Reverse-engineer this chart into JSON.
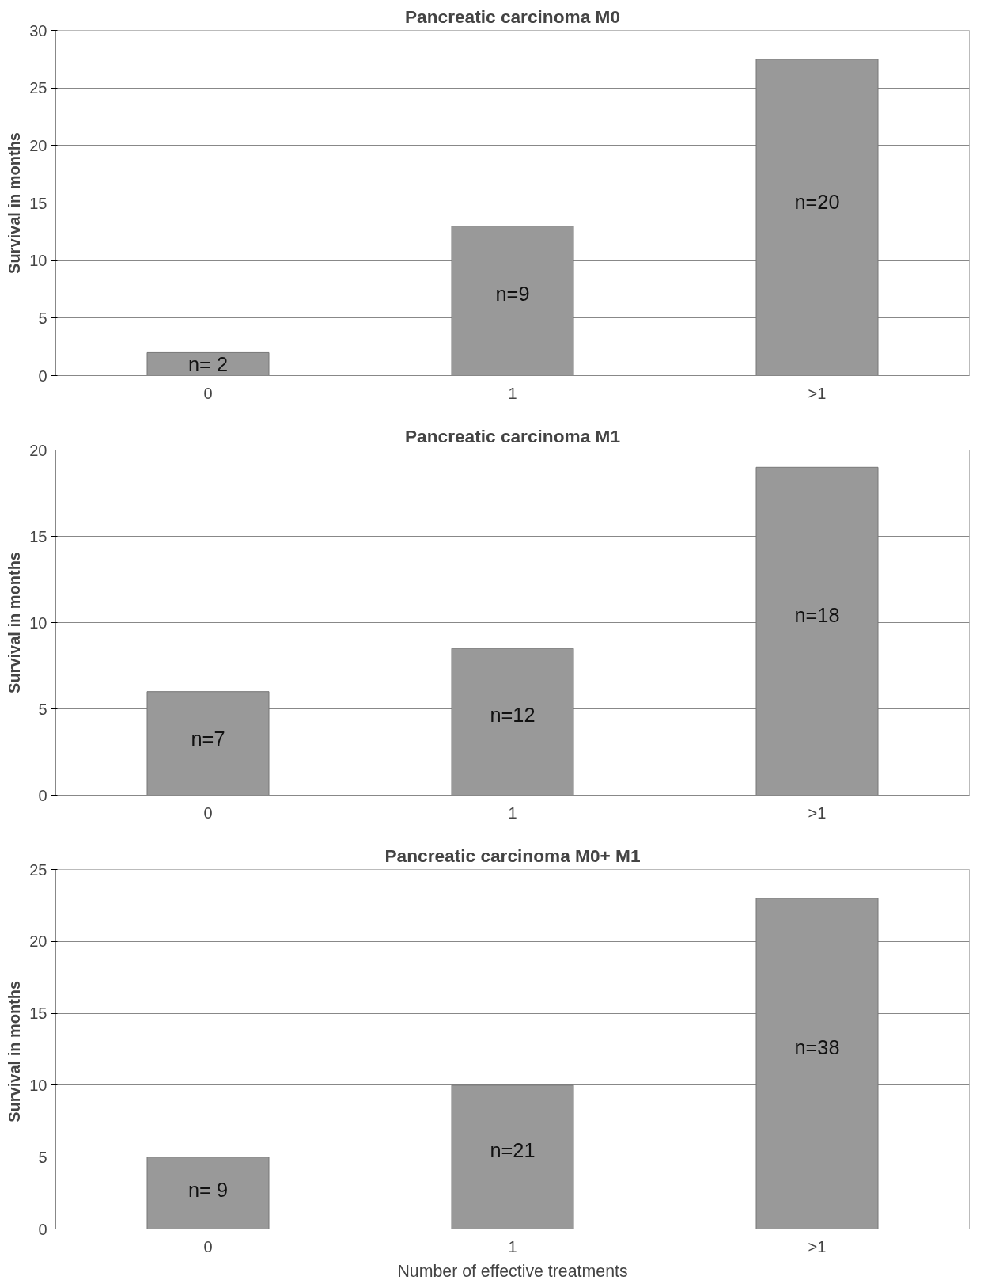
{
  "chart_data": [
    {
      "type": "bar",
      "title": "Pancreatic carcinoma M0",
      "ylabel": "Survival in months",
      "categories": [
        "0",
        "1",
        ">1"
      ],
      "values": [
        2,
        13,
        27.5
      ],
      "color": "#999999",
      "ylim": [
        0,
        30
      ],
      "yticks": [
        0,
        5,
        10,
        15,
        20,
        25,
        30
      ],
      "grid": "y",
      "annotations": [
        "n= 2",
        "n=9",
        "n=20"
      ]
    },
    {
      "type": "bar",
      "title": "Pancreatic carcinoma M1",
      "ylabel": "Survival in months",
      "categories": [
        "0",
        "1",
        ">1"
      ],
      "values": [
        6,
        8.5,
        19
      ],
      "color": "#999999",
      "ylim": [
        0,
        20
      ],
      "yticks": [
        0,
        5,
        10,
        15,
        20
      ],
      "grid": "y",
      "annotations": [
        "n=7",
        "n=12",
        "n=18"
      ]
    },
    {
      "type": "bar",
      "title": "Pancreatic carcinoma M0+ M1",
      "ylabel": "Survival  in months",
      "xlabel": "Number of effective treatments",
      "categories": [
        "0",
        "1",
        ">1"
      ],
      "values": [
        5,
        10,
        23
      ],
      "color": "#999999",
      "ylim": [
        0,
        25
      ],
      "yticks": [
        0,
        5,
        10,
        15,
        20,
        25
      ],
      "grid": "y",
      "annotations": [
        "n= 9",
        "n=21",
        "n=38"
      ]
    }
  ]
}
